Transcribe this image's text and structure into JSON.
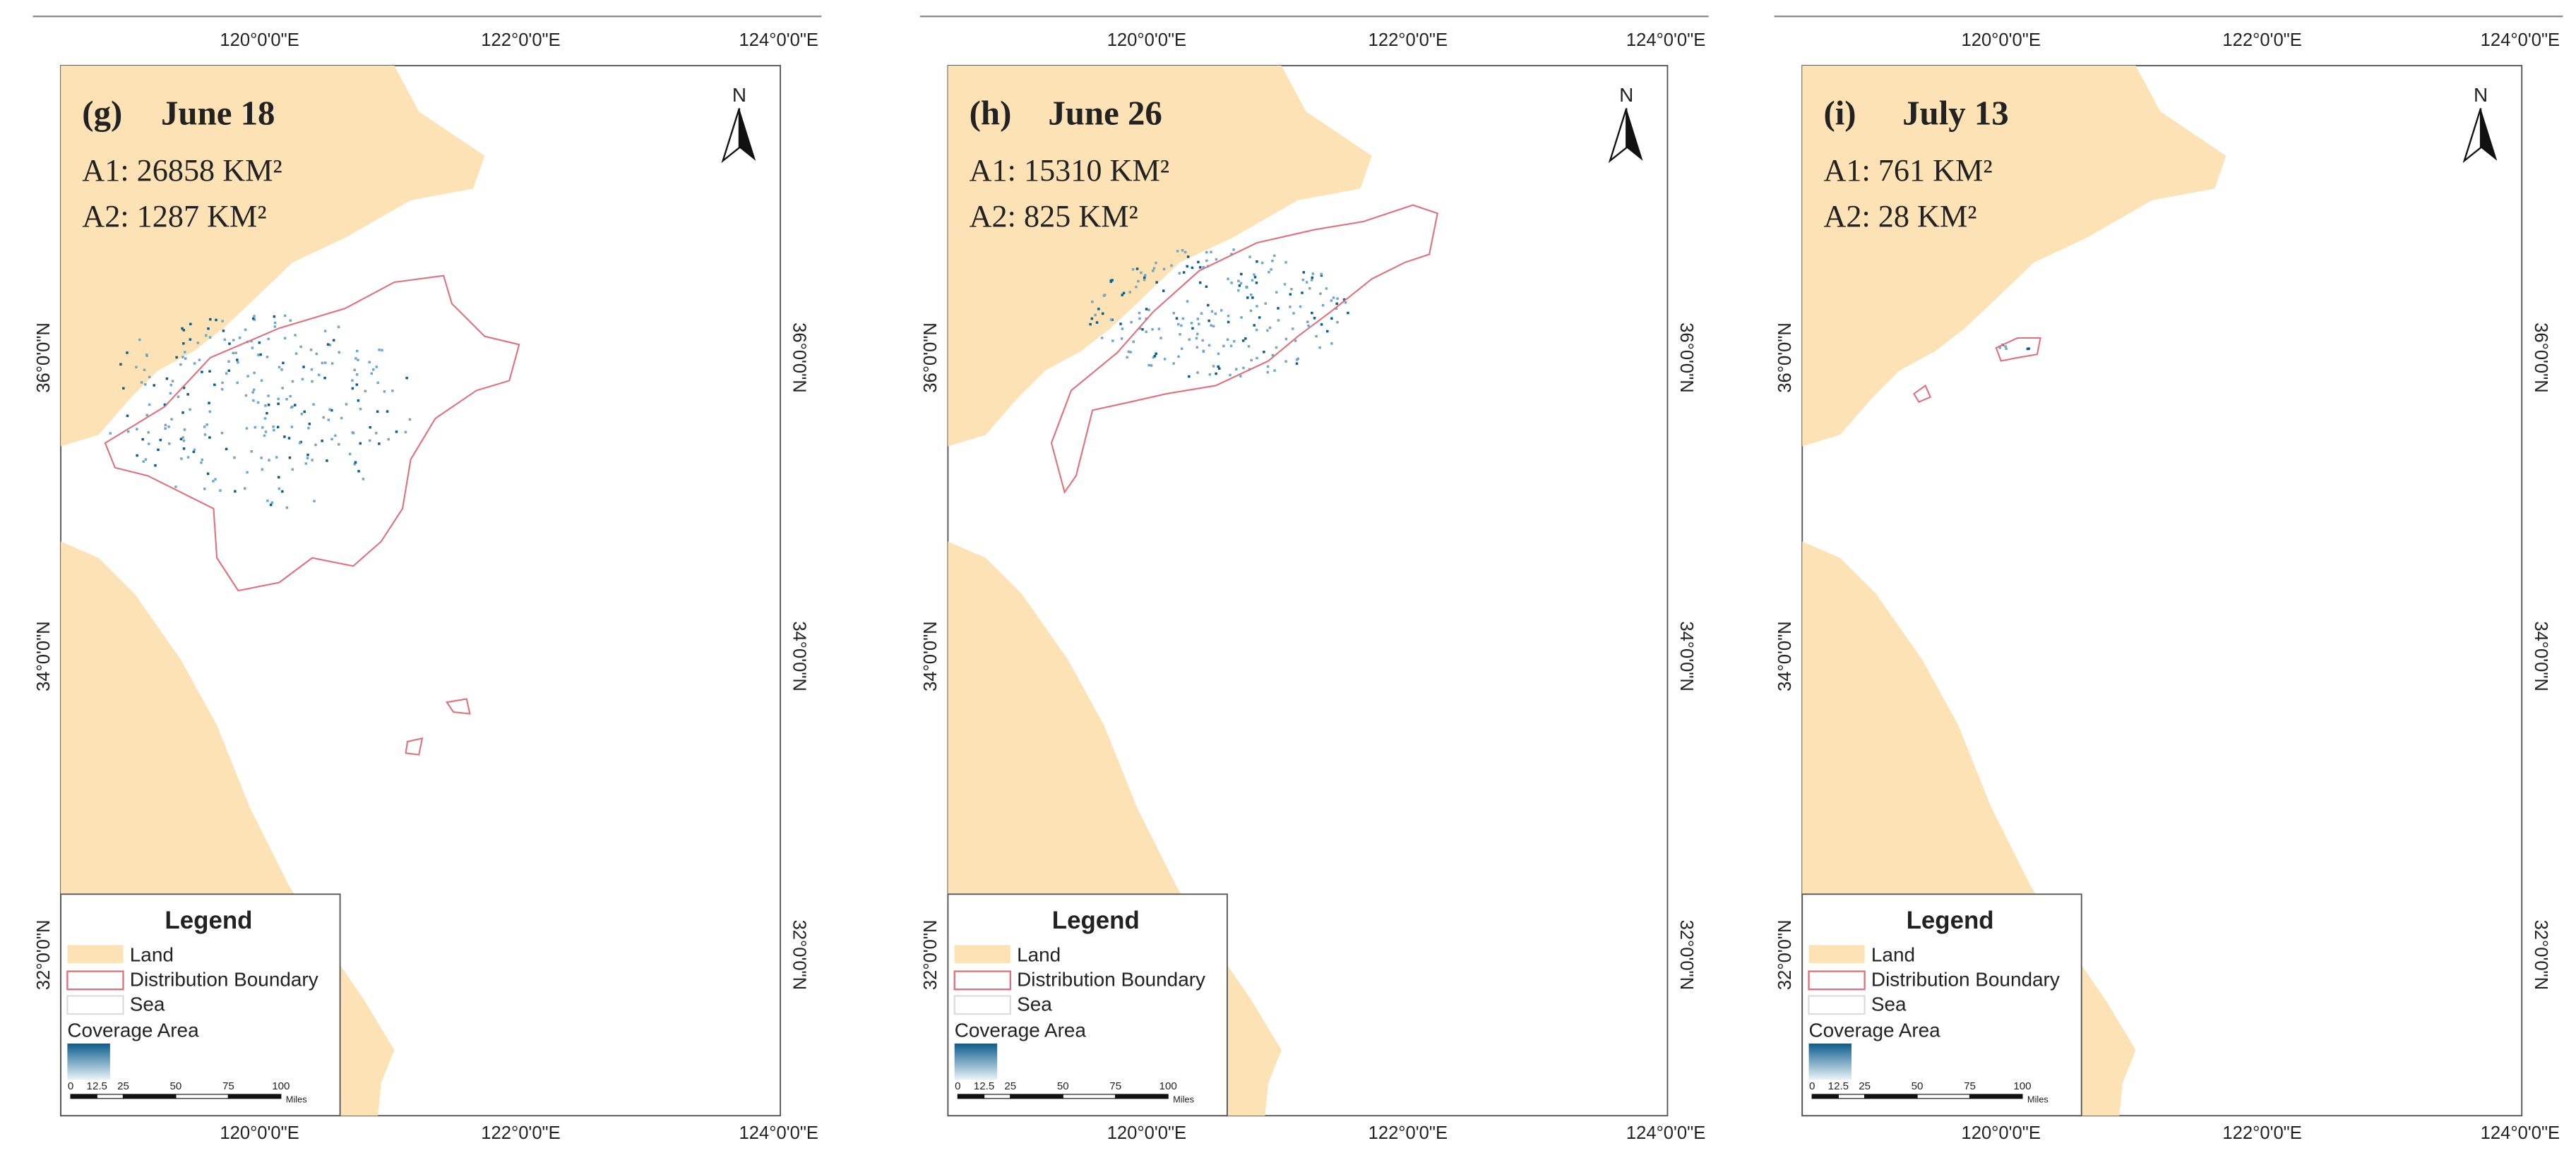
{
  "axes": {
    "lon": [
      "120°0'0\"E",
      "122°0'0\"E",
      "124°0'0\"E"
    ],
    "lat": [
      "36°0'0\"N",
      "34°0'0\"N",
      "32°0'0\"N"
    ]
  },
  "north": "N",
  "panels": [
    {
      "label": "(g)",
      "date": "June 18",
      "a1": "A1: 26858 KM²",
      "a2": "A2: 1287 KM²"
    },
    {
      "label": "(h)",
      "date": "June 26",
      "a1": "A1: 15310 KM²",
      "a2": "A2: 825 KM²"
    },
    {
      "label": "(i)",
      "date": "July 13",
      "a1": "A1: 761 KM²",
      "a2": "A2: 28 KM²"
    }
  ],
  "legend": {
    "title": "Legend",
    "items": [
      "Land",
      "Distribution Boundary",
      "Sea",
      "Coverage Area"
    ]
  },
  "scale_bar": {
    "ticks": [
      "0",
      "12.5",
      "25",
      "50",
      "75",
      "100"
    ],
    "unit": "Miles"
  }
}
